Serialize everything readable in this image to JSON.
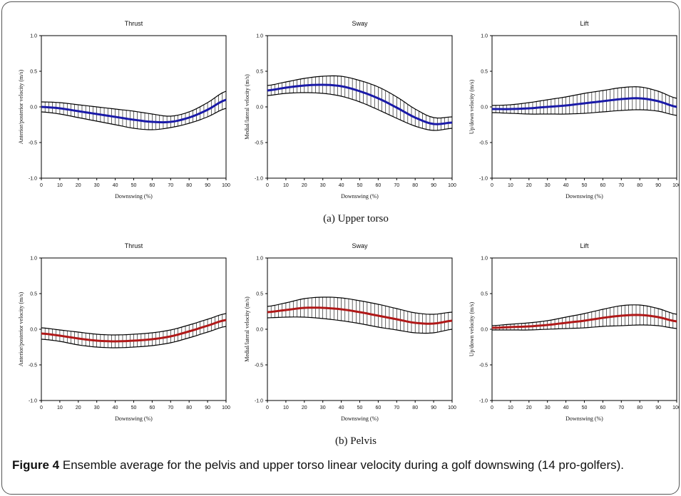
{
  "figure": {
    "caption_label": "Figure 4",
    "caption_text": "Ensemble average for the pelvis and upper torso linear velocity during a golf downswing (14 pro-golfers).",
    "subfigure_labels": [
      "(a) Upper torso",
      "(b) Pelvis"
    ]
  },
  "colors": {
    "upper_torso_mean": "#1a1aa8",
    "pelvis_mean": "#b01818",
    "sd_band": "#000000"
  },
  "chart_data": [
    {
      "type": "line",
      "title": "Thrust",
      "xlabel": "Downswing (%)",
      "ylabel": "Anterior/posterior velocity (m/s)",
      "xlim": [
        0,
        100
      ],
      "ylim": [
        -1.0,
        1.0
      ],
      "xticks": [
        "0",
        "10",
        "20",
        "30",
        "40",
        "50",
        "60",
        "70",
        "80",
        "90",
        "100"
      ],
      "yticks": [
        "-1.0",
        "-0.5",
        "0.0",
        "0.5",
        "1.0"
      ],
      "x": [
        0,
        10,
        20,
        30,
        40,
        50,
        60,
        70,
        80,
        90,
        100
      ],
      "series": [
        {
          "values": [
            0.0,
            -0.02,
            -0.06,
            -0.1,
            -0.14,
            -0.18,
            -0.21,
            -0.21,
            -0.15,
            -0.04,
            0.1
          ],
          "sd": [
            0.07,
            0.08,
            0.09,
            0.1,
            0.11,
            0.12,
            0.11,
            0.08,
            0.08,
            0.1,
            0.12
          ]
        }
      ],
      "grid": false
    },
    {
      "type": "line",
      "title": "Sway",
      "xlabel": "Downswing (%)",
      "ylabel": "Medial/lateral velocity (m/s)",
      "xlim": [
        0,
        100
      ],
      "ylim": [
        -1.0,
        1.0
      ],
      "xticks": [
        "0",
        "10",
        "20",
        "30",
        "40",
        "50",
        "60",
        "70",
        "80",
        "90",
        "100"
      ],
      "yticks": [
        "-1.0",
        "-0.5",
        "0.0",
        "0.5",
        "1.0"
      ],
      "x": [
        0,
        10,
        20,
        30,
        40,
        50,
        60,
        70,
        80,
        90,
        100
      ],
      "series": [
        {
          "values": [
            0.23,
            0.27,
            0.3,
            0.31,
            0.29,
            0.22,
            0.12,
            -0.01,
            -0.15,
            -0.24,
            -0.22
          ],
          "sd": [
            0.07,
            0.08,
            0.1,
            0.12,
            0.14,
            0.15,
            0.16,
            0.15,
            0.12,
            0.09,
            0.08
          ]
        }
      ],
      "grid": false
    },
    {
      "type": "line",
      "title": "Lift",
      "xlabel": "Downswing (%)",
      "ylabel": "Up/down velocity (m/s)",
      "xlim": [
        0,
        100
      ],
      "ylim": [
        -1.0,
        1.0
      ],
      "xticks": [
        "0",
        "10",
        "20",
        "30",
        "40",
        "50",
        "60",
        "70",
        "80",
        "90",
        "100"
      ],
      "yticks": [
        "-1.0",
        "-0.5",
        "0.0",
        "0.5",
        "1.0"
      ],
      "x": [
        0,
        10,
        20,
        30,
        40,
        50,
        60,
        70,
        80,
        90,
        100
      ],
      "series": [
        {
          "values": [
            -0.03,
            -0.03,
            -0.02,
            0.0,
            0.02,
            0.05,
            0.08,
            0.11,
            0.12,
            0.08,
            0.0
          ],
          "sd": [
            0.05,
            0.06,
            0.08,
            0.1,
            0.12,
            0.14,
            0.15,
            0.16,
            0.16,
            0.14,
            0.12
          ]
        }
      ],
      "grid": false
    },
    {
      "type": "line",
      "title": "Thrust",
      "xlabel": "Downswing (%)",
      "ylabel": "Anterior/posterior velocity (m/s)",
      "xlim": [
        0,
        100
      ],
      "ylim": [
        -1.0,
        1.0
      ],
      "xticks": [
        "0",
        "10",
        "20",
        "30",
        "40",
        "50",
        "60",
        "70",
        "80",
        "90",
        "100"
      ],
      "yticks": [
        "-1.0",
        "-0.5",
        "0.0",
        "0.5",
        "1.0"
      ],
      "x": [
        0,
        10,
        20,
        30,
        40,
        50,
        60,
        70,
        80,
        90,
        100
      ],
      "series": [
        {
          "values": [
            -0.06,
            -0.09,
            -0.13,
            -0.16,
            -0.17,
            -0.16,
            -0.14,
            -0.1,
            -0.03,
            0.05,
            0.13
          ],
          "sd": [
            0.08,
            0.08,
            0.09,
            0.09,
            0.09,
            0.09,
            0.09,
            0.09,
            0.09,
            0.09,
            0.09
          ]
        }
      ],
      "grid": false
    },
    {
      "type": "line",
      "title": "Sway",
      "xlabel": "Downswing (%)",
      "ylabel": "Medial/lateral velocity (m/s)",
      "xlim": [
        0,
        100
      ],
      "ylim": [
        -1.0,
        1.0
      ],
      "xticks": [
        "0",
        "10",
        "20",
        "30",
        "40",
        "50",
        "60",
        "70",
        "80",
        "90",
        "100"
      ],
      "yticks": [
        "-1.0",
        "-0.5",
        "0.0",
        "0.5",
        "1.0"
      ],
      "x": [
        0,
        10,
        20,
        30,
        40,
        50,
        60,
        70,
        80,
        90,
        100
      ],
      "series": [
        {
          "values": [
            0.24,
            0.27,
            0.3,
            0.3,
            0.28,
            0.24,
            0.19,
            0.14,
            0.09,
            0.08,
            0.12
          ],
          "sd": [
            0.08,
            0.1,
            0.13,
            0.15,
            0.16,
            0.16,
            0.16,
            0.15,
            0.14,
            0.13,
            0.12
          ]
        }
      ],
      "grid": false
    },
    {
      "type": "line",
      "title": "Lift",
      "xlabel": "Downswing (%)",
      "ylabel": "Up/down velocity (m/s)",
      "xlim": [
        0,
        100
      ],
      "ylim": [
        -1.0,
        1.0
      ],
      "xticks": [
        "0",
        "10",
        "20",
        "30",
        "40",
        "50",
        "60",
        "70",
        "80",
        "90",
        "100"
      ],
      "yticks": [
        "-1.0",
        "-0.5",
        "0.0",
        "0.5",
        "1.0"
      ],
      "x": [
        0,
        10,
        20,
        30,
        40,
        50,
        60,
        70,
        80,
        90,
        100
      ],
      "series": [
        {
          "values": [
            0.02,
            0.03,
            0.04,
            0.06,
            0.09,
            0.12,
            0.16,
            0.19,
            0.2,
            0.17,
            0.11
          ],
          "sd": [
            0.03,
            0.04,
            0.05,
            0.06,
            0.08,
            0.1,
            0.12,
            0.14,
            0.14,
            0.12,
            0.1
          ]
        }
      ],
      "grid": false
    }
  ]
}
